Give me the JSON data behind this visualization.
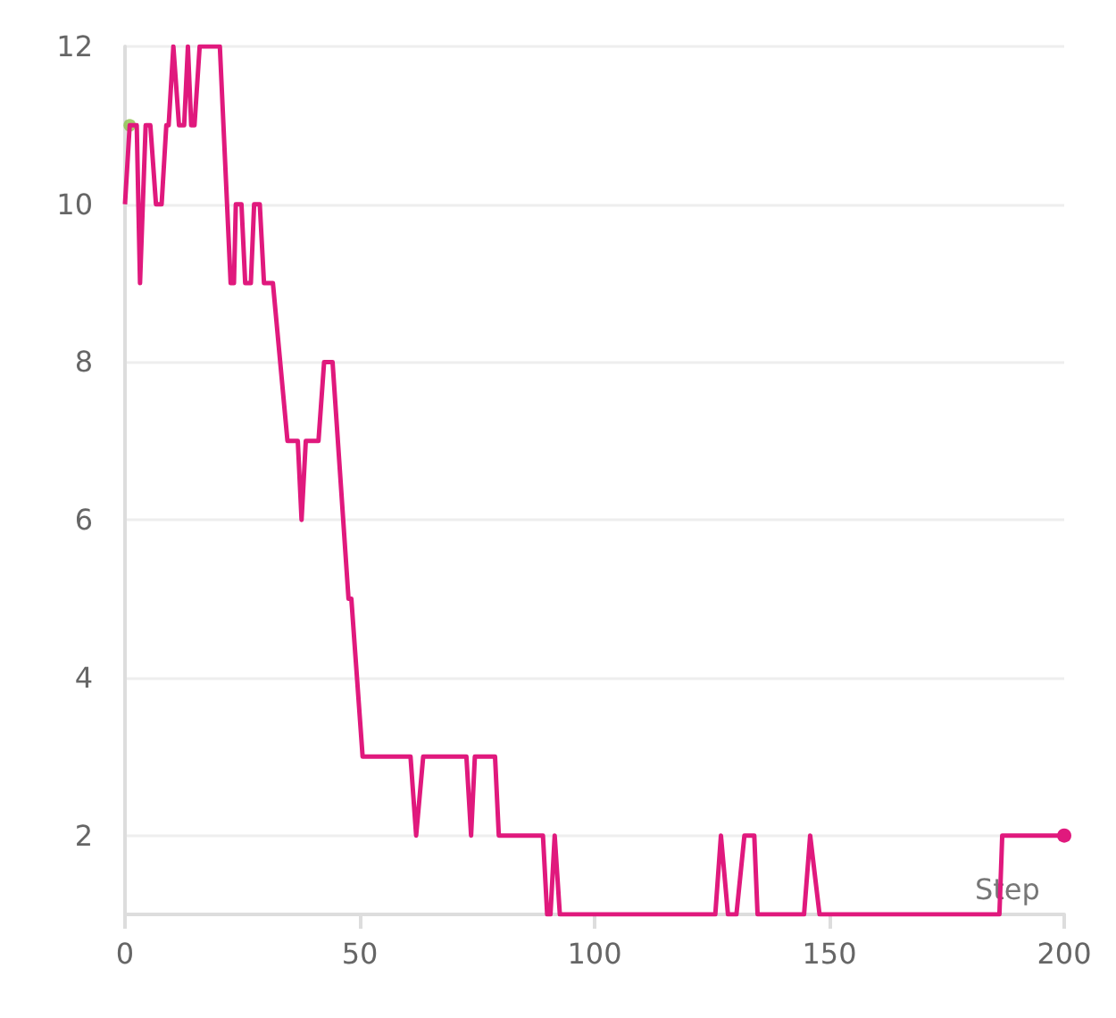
{
  "chart_data": {
    "type": "line",
    "xlabel": "Step",
    "xlim": [
      0,
      200
    ],
    "xticks": [
      0,
      50,
      100,
      150,
      200
    ],
    "ylim": [
      1,
      12
    ],
    "yticks": [
      2,
      4,
      6,
      8,
      10,
      12
    ],
    "grid": "y",
    "line_style": "solid",
    "series": [
      {
        "color": "#e0197d",
        "x": [
          0,
          1,
          2.5,
          3.2,
          4.4,
          5.4,
          6.6,
          7.8,
          8.8,
          9.3,
          10.3,
          11.5,
          12.6,
          13.4,
          14.1,
          14.8,
          15.9,
          20.2,
          22.5,
          23.2,
          23.6,
          24.8,
          25.6,
          26.8,
          27.5,
          28.7,
          29.6,
          31.5,
          34.6,
          36.8,
          37.6,
          38.5,
          41.2,
          42.4,
          44.2,
          47.6,
          48.2,
          50.6,
          60.8,
          62,
          63.5,
          72.7,
          73.7,
          74.5,
          78.8,
          79.6,
          89,
          89.9,
          90.6,
          91.5,
          92.6,
          125.7,
          126.9,
          128.4,
          130.2,
          131.9,
          134,
          134.7,
          144.6,
          145.9,
          147.9,
          186.2,
          186.8,
          200
        ],
        "values": [
          10,
          11,
          11,
          9,
          11,
          11,
          10,
          10,
          11,
          11,
          12,
          11,
          11,
          12,
          11,
          11,
          12,
          12,
          9,
          9,
          10,
          10,
          9,
          9,
          10,
          10,
          9,
          9,
          7,
          7,
          6,
          7,
          7,
          8,
          8,
          5,
          5,
          3,
          3,
          2,
          3,
          3,
          2,
          3,
          3,
          2,
          2,
          1,
          1,
          2,
          1,
          1,
          2,
          1,
          1,
          2,
          2,
          1,
          1,
          2,
          1,
          1,
          2,
          2
        ]
      },
      {
        "color": "#8bc34a",
        "type": "scatter",
        "marker": "circle",
        "x": [
          1
        ],
        "values": [
          11
        ]
      }
    ]
  }
}
